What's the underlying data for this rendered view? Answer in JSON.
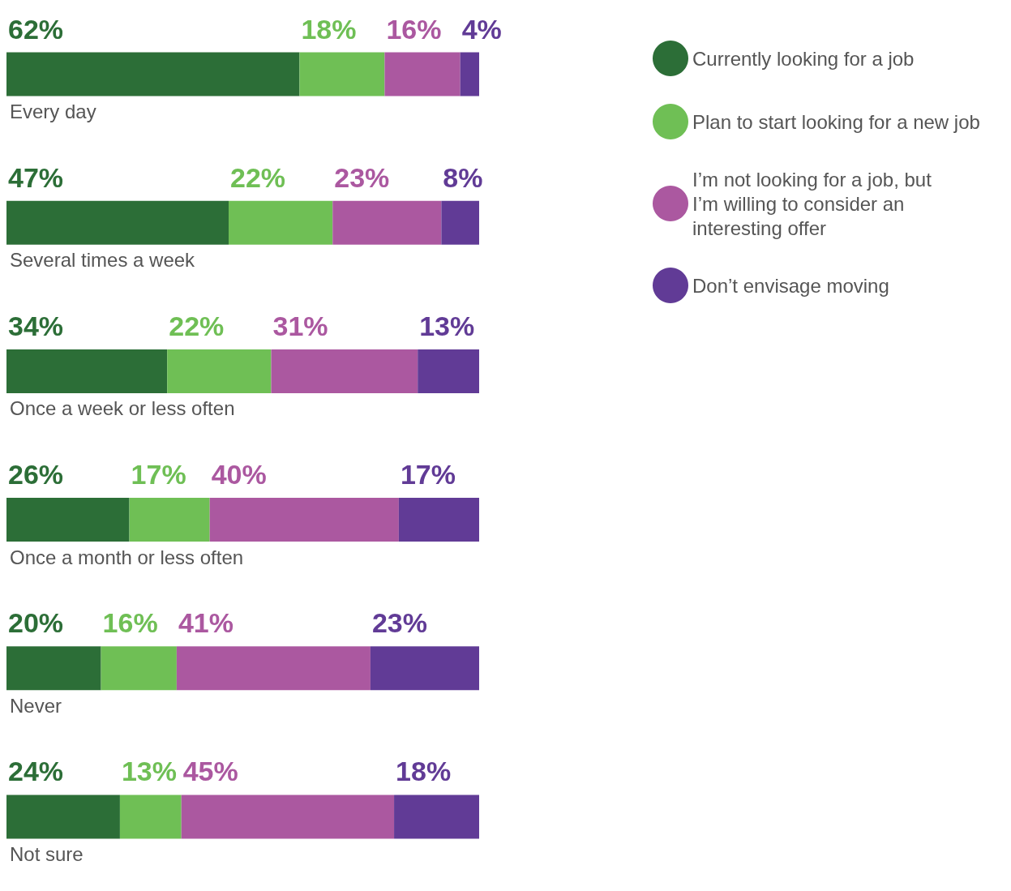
{
  "chart_data": {
    "type": "bar",
    "orientation": "horizontal",
    "stacked": true,
    "xlim": [
      0,
      100
    ],
    "tick_labels": "y",
    "grid": false,
    "legend": "top right",
    "categories": [
      "Every day",
      "Several times a week",
      "Once a week or less often",
      "Once a month or less often",
      "Never",
      "Not sure"
    ],
    "series": [
      {
        "name": "Currently looking for a job",
        "color": "#2c6e37",
        "values": [
          62,
          47,
          34,
          26,
          20,
          24
        ],
        "value_labels": [
          "62%",
          "47%",
          "34%",
          "26%",
          "20%",
          "24%"
        ]
      },
      {
        "name": "Plan to start looking for a new job",
        "color": "#6fbf55",
        "values": [
          18,
          22,
          22,
          17,
          16,
          13
        ],
        "value_labels": [
          "18%",
          "22%",
          "22%",
          "17%",
          "16%",
          "13%"
        ]
      },
      {
        "name": "I’m not looking for a job, but I’m willing to consider an interesting offer",
        "color": "#ab58a0",
        "values": [
          16,
          23,
          31,
          40,
          41,
          45
        ],
        "value_labels": [
          "16%",
          "23%",
          "31%",
          "40%",
          "41%",
          "45%"
        ]
      },
      {
        "name": "Don’t envisage moving",
        "color": "#613b96",
        "values": [
          4,
          8,
          13,
          17,
          23,
          18
        ],
        "value_labels": [
          "4%",
          "8%",
          "13%",
          "17%",
          "23%",
          "18%"
        ]
      }
    ]
  }
}
